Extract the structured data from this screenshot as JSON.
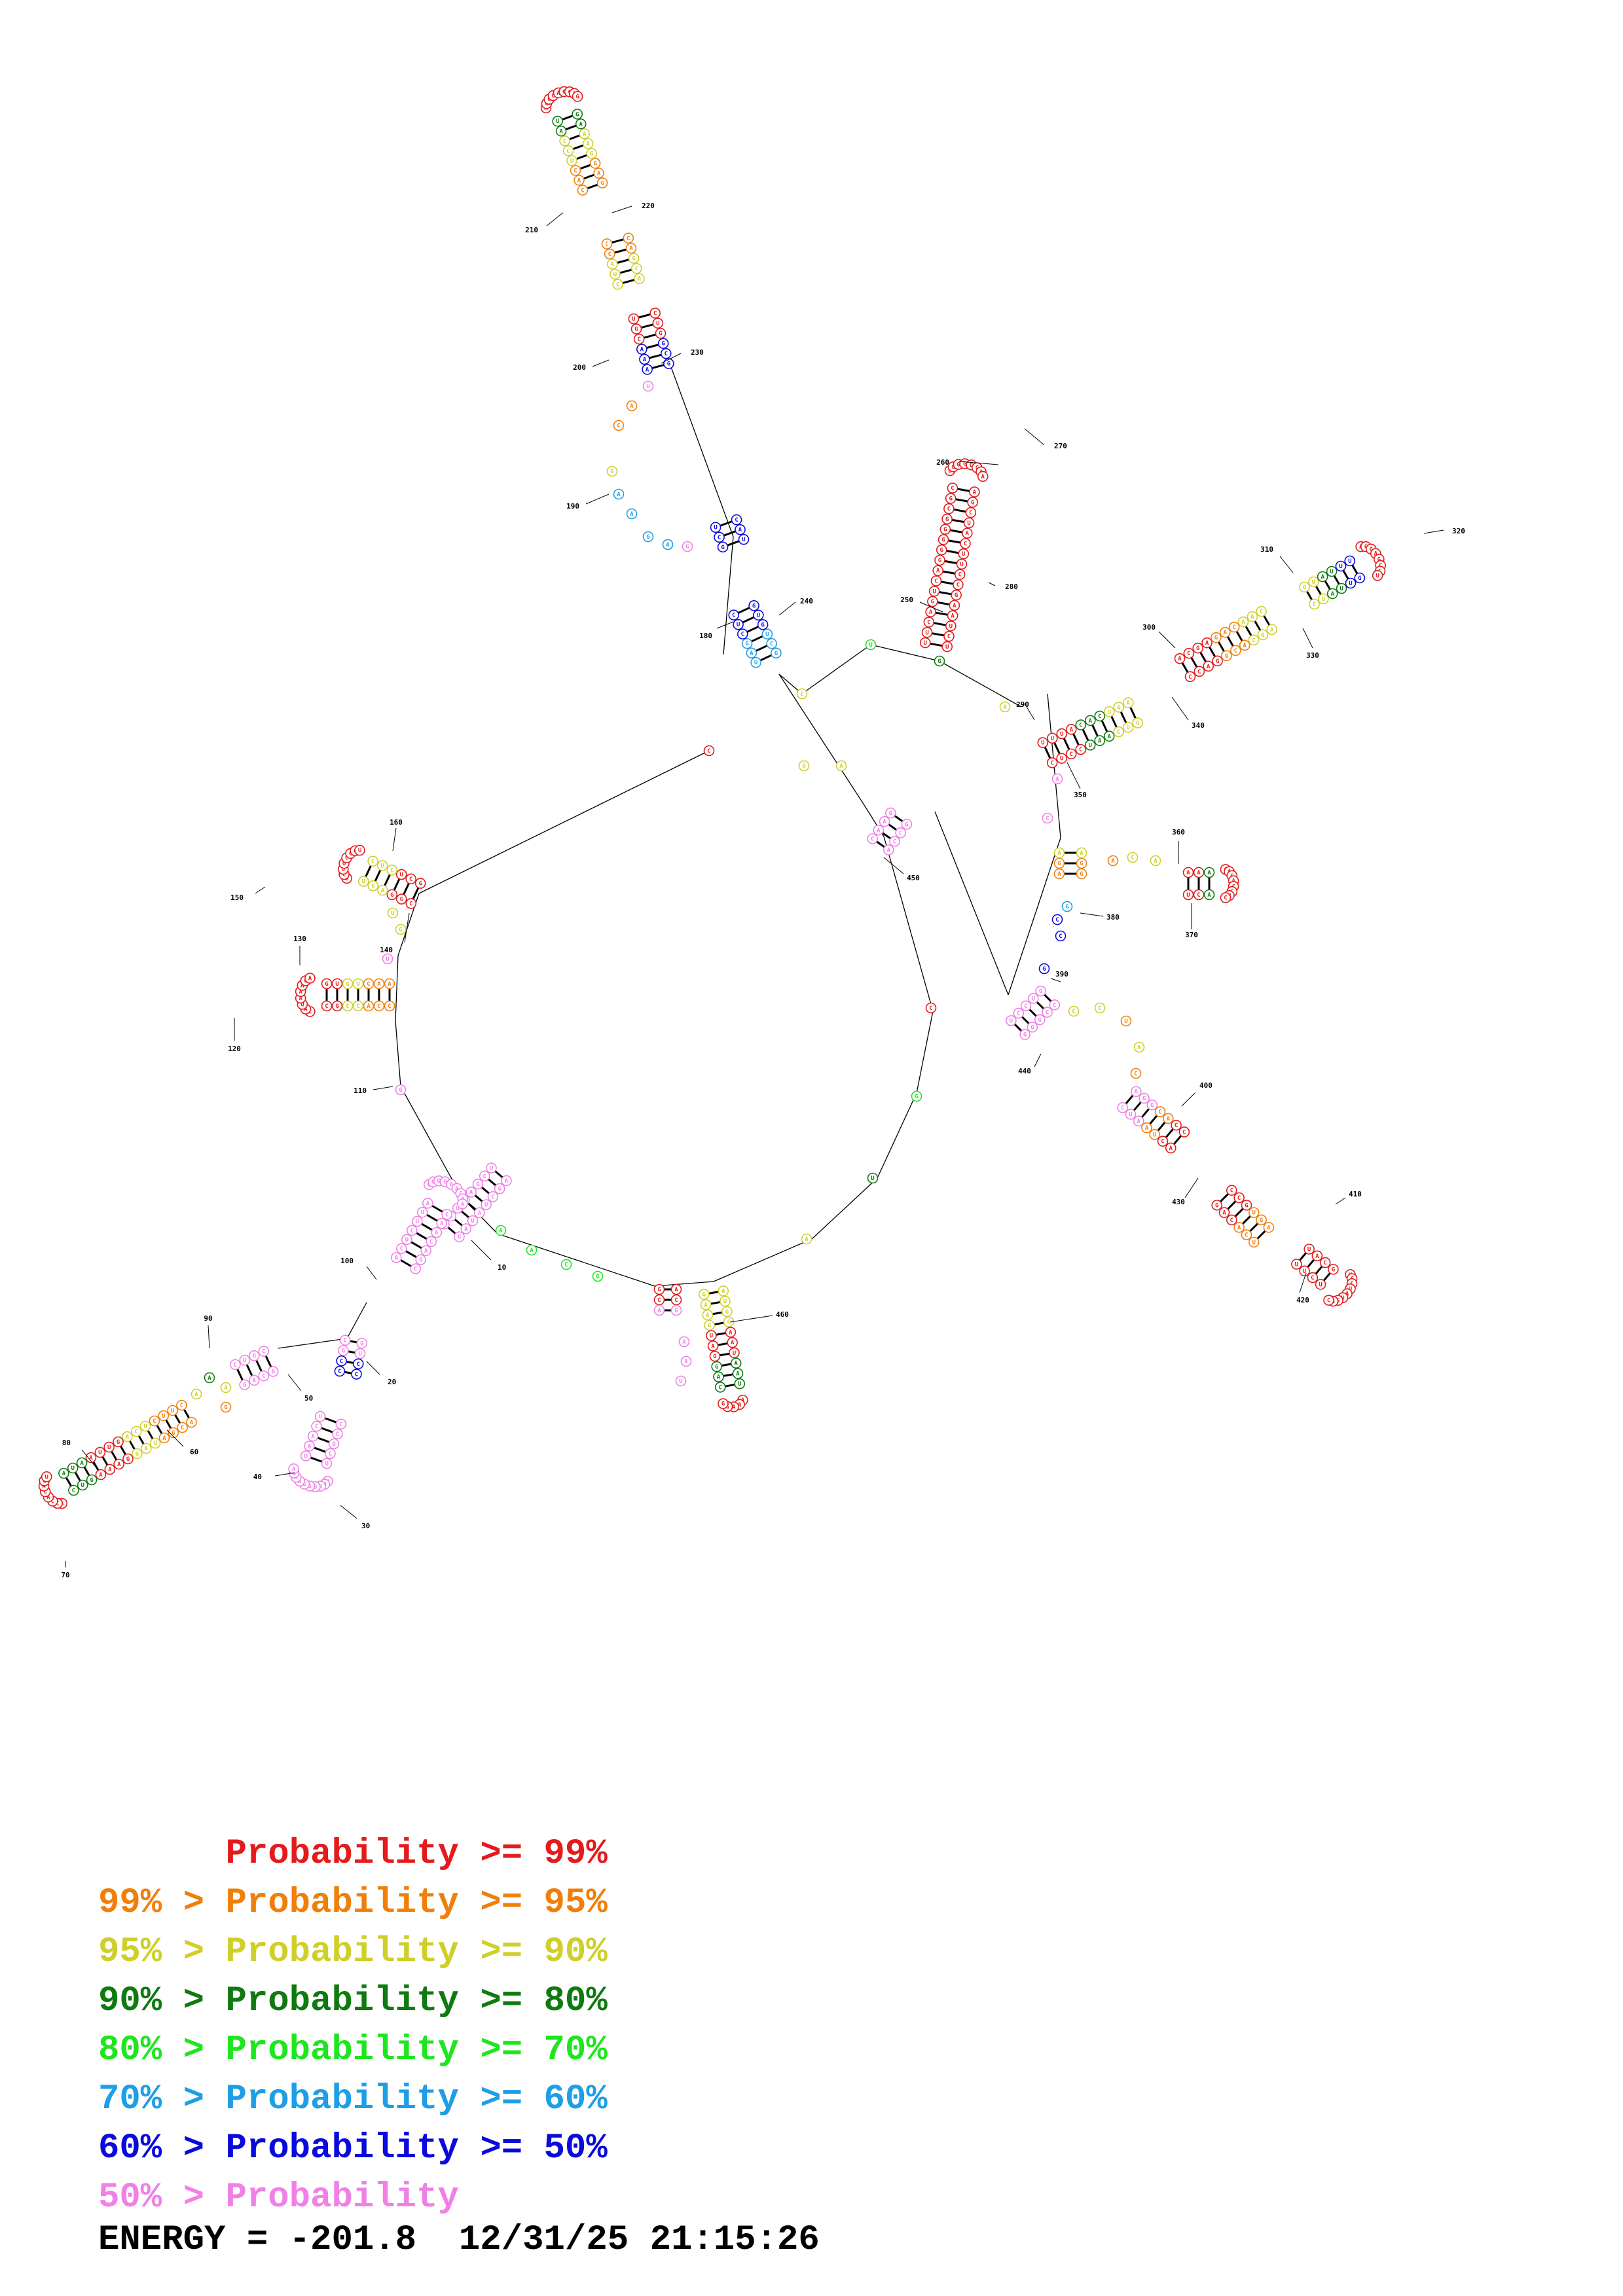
{
  "legend": [
    {
      "prefix": "",
      "label": "Probability",
      "suffix": ">= 99%",
      "color": "#e41a1c"
    },
    {
      "prefix": "99% > ",
      "label": "Probability",
      "suffix": ">= 95%",
      "color": "#f07f0a"
    },
    {
      "prefix": "95% > ",
      "label": "Probability",
      "suffix": ">= 90%",
      "color": "#cfcf2a"
    },
    {
      "prefix": "90% > ",
      "label": "Probability",
      "suffix": ">= 80%",
      "color": "#0f7a0f"
    },
    {
      "prefix": "80% > ",
      "label": "Probability",
      "suffix": ">= 70%",
      "color": "#1ee61e"
    },
    {
      "prefix": "70% > ",
      "label": "Probability",
      "suffix": ">= 60%",
      "color": "#1e9ee6"
    },
    {
      "prefix": "60% > ",
      "label": "Probability",
      "suffix": ">= 50%",
      "color": "#0a0adc"
    },
    {
      "prefix": "50% > ",
      "label": "Probability",
      "suffix": "",
      "color": "#f080e6"
    }
  ],
  "energy": {
    "label": "ENERGY",
    "value": "-201.8",
    "date": "12/31/25",
    "time": "21:15:26"
  },
  "position_labels": [
    "10",
    "20",
    "30",
    "40",
    "50",
    "60",
    "70",
    "80",
    "90",
    "100",
    "110",
    "120",
    "130",
    "140",
    "150",
    "160",
    "180",
    "190",
    "200",
    "210",
    "220",
    "230",
    "240",
    "250",
    "260",
    "270",
    "280",
    "290",
    "300",
    "310",
    "320",
    "330",
    "340",
    "350",
    "360",
    "370",
    "380",
    "390",
    "400",
    "410",
    "420",
    "430",
    "440",
    "450",
    "460"
  ]
}
